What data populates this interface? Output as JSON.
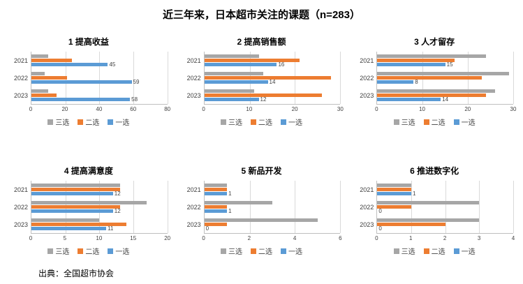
{
  "page": {
    "title": "近三年来，日本超市关注的课题（n=283）",
    "source": "出典：全国超市协会"
  },
  "colors": {
    "series_third": "#a6a6a6",
    "series_second": "#ed7d31",
    "series_first": "#5b9bd5",
    "gridline": "#d9d9d9",
    "axis": "#bfbfbf"
  },
  "legend": {
    "position": "bottom",
    "items": [
      {
        "label": "三选",
        "color": "#a6a6a6"
      },
      {
        "label": "二选",
        "color": "#ed7d31"
      },
      {
        "label": "一选",
        "color": "#5b9bd5"
      }
    ]
  },
  "chart_data": [
    {
      "type": "bar",
      "orientation": "horizontal",
      "title": "1 提高收益",
      "categories": [
        "2021",
        "2022",
        "2023"
      ],
      "series": [
        {
          "name": "三选",
          "color": "#a6a6a6",
          "values": [
            10,
            8,
            10
          ]
        },
        {
          "name": "二选",
          "color": "#ed7d31",
          "values": [
            24,
            21,
            15
          ]
        },
        {
          "name": "一选",
          "color": "#5b9bd5",
          "values": [
            45,
            59,
            58
          ],
          "data_labels": true
        }
      ],
      "xlim": [
        0,
        80
      ],
      "xticks": [
        0,
        20,
        40,
        60,
        80
      ],
      "grid": true
    },
    {
      "type": "bar",
      "orientation": "horizontal",
      "title": "2 提高销售额",
      "categories": [
        "2021",
        "2022",
        "2023"
      ],
      "series": [
        {
          "name": "三选",
          "color": "#a6a6a6",
          "values": [
            12,
            13,
            11
          ]
        },
        {
          "name": "二选",
          "color": "#ed7d31",
          "values": [
            21,
            28,
            26
          ]
        },
        {
          "name": "一选",
          "color": "#5b9bd5",
          "values": [
            16,
            14,
            12
          ],
          "data_labels": true
        }
      ],
      "xlim": [
        0,
        30
      ],
      "xticks": [
        0,
        10,
        20,
        30
      ],
      "grid": true
    },
    {
      "type": "bar",
      "orientation": "horizontal",
      "title": "3 人才留存",
      "categories": [
        "2021",
        "2022",
        "2023"
      ],
      "series": [
        {
          "name": "三选",
          "color": "#a6a6a6",
          "values": [
            24,
            29,
            26
          ]
        },
        {
          "name": "二选",
          "color": "#ed7d31",
          "values": [
            17,
            23,
            24
          ]
        },
        {
          "name": "一选",
          "color": "#5b9bd5",
          "values": [
            15,
            8,
            14
          ],
          "data_labels": true
        }
      ],
      "xlim": [
        0,
        30
      ],
      "xticks": [
        0,
        10,
        20,
        30
      ],
      "grid": true
    },
    {
      "type": "bar",
      "orientation": "horizontal",
      "title": "4 提高满意度",
      "categories": [
        "2021",
        "2022",
        "2023"
      ],
      "series": [
        {
          "name": "三选",
          "color": "#a6a6a6",
          "values": [
            13,
            17,
            10
          ]
        },
        {
          "name": "二选",
          "color": "#ed7d31",
          "values": [
            13,
            13,
            14
          ]
        },
        {
          "name": "一选",
          "color": "#5b9bd5",
          "values": [
            12,
            12,
            11
          ],
          "data_labels": true
        }
      ],
      "xlim": [
        0,
        20
      ],
      "xticks": [
        0,
        5,
        10,
        15,
        20
      ],
      "grid": true
    },
    {
      "type": "bar",
      "orientation": "horizontal",
      "title": "5 新品开发",
      "categories": [
        "2021",
        "2022",
        "2023"
      ],
      "series": [
        {
          "name": "三选",
          "color": "#a6a6a6",
          "values": [
            1,
            3,
            5
          ]
        },
        {
          "name": "二选",
          "color": "#ed7d31",
          "values": [
            1,
            1,
            1
          ]
        },
        {
          "name": "一选",
          "color": "#5b9bd5",
          "values": [
            1,
            1,
            0
          ],
          "data_labels": true
        }
      ],
      "xlim": [
        0,
        6
      ],
      "xticks": [
        0,
        2,
        4,
        6
      ],
      "grid": true
    },
    {
      "type": "bar",
      "orientation": "horizontal",
      "title": "6 推进数字化",
      "categories": [
        "2021",
        "2022",
        "2023"
      ],
      "series": [
        {
          "name": "三选",
          "color": "#a6a6a6",
          "values": [
            1,
            3,
            3
          ]
        },
        {
          "name": "二选",
          "color": "#ed7d31",
          "values": [
            1,
            1,
            2
          ]
        },
        {
          "name": "一选",
          "color": "#5b9bd5",
          "values": [
            1,
            0,
            0
          ],
          "data_labels": true
        }
      ],
      "xlim": [
        0,
        4
      ],
      "xticks": [
        0,
        1,
        2,
        3,
        4
      ],
      "grid": true
    }
  ]
}
